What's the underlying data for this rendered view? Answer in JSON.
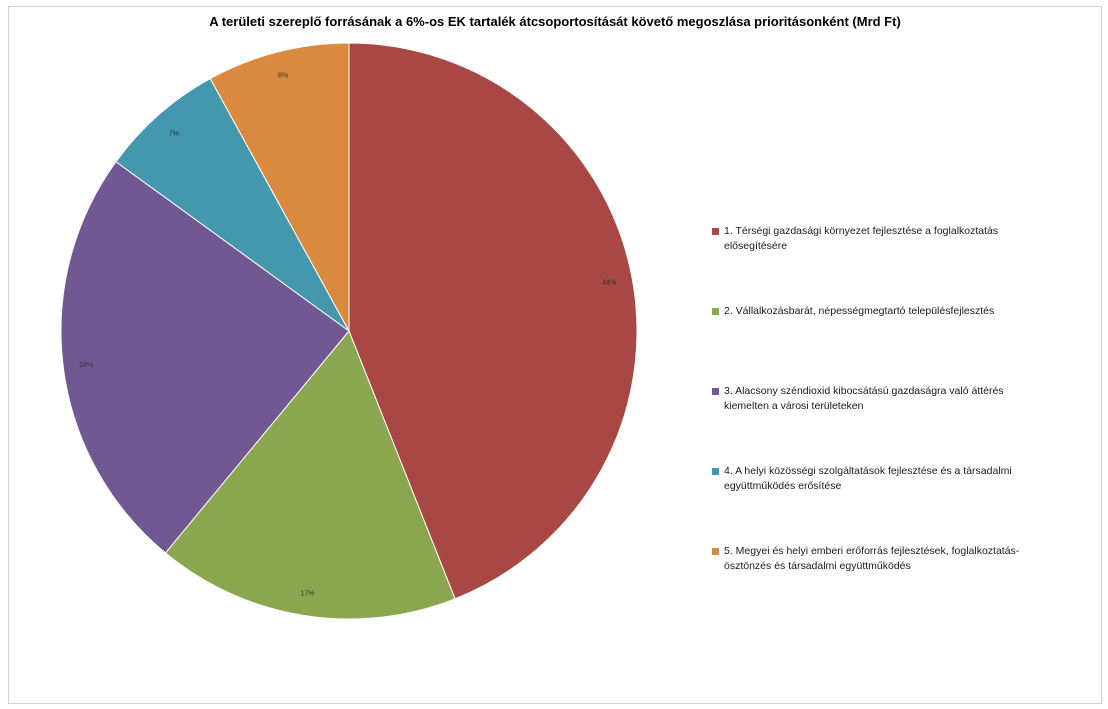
{
  "chart_data": {
    "type": "pie",
    "title": "A területi szereplő forrásának a 6%-os EK tartalék átcsoportosítását követő megoszlása prioritásonként (Mrd Ft)",
    "legend_position": "right",
    "slices": [
      {
        "label": "1. Térségi gazdasági környezet fejlesztése a foglalkoztatás elősegítésére",
        "value": 44,
        "pct_label": "44%",
        "color": "#a84744"
      },
      {
        "label": "2. Vállalkozásbarát, népességmegtartó településfejlesztés",
        "value": 17,
        "pct_label": "17%",
        "color": "#8aa64e"
      },
      {
        "label": "3. Alacsony széndioxid kibocsátású gazdaságra való áttérés kiemelten a városi területeken",
        "value": 24,
        "pct_label": "24%",
        "color": "#715893"
      },
      {
        "label": "4. A helyi közösségi szolgáltatások  fejlesztése és a társadalmi együttműködés erősítése",
        "value": 7,
        "pct_label": "7%",
        "color": "#4398ad"
      },
      {
        "label": "5. Megyei és helyi emberi erőforrás fejlesztések, foglalkoztatás-ösztönzés  és társadalmi együttműködés",
        "value": 8,
        "pct_label": "8%",
        "color": "#da8a40"
      }
    ]
  }
}
